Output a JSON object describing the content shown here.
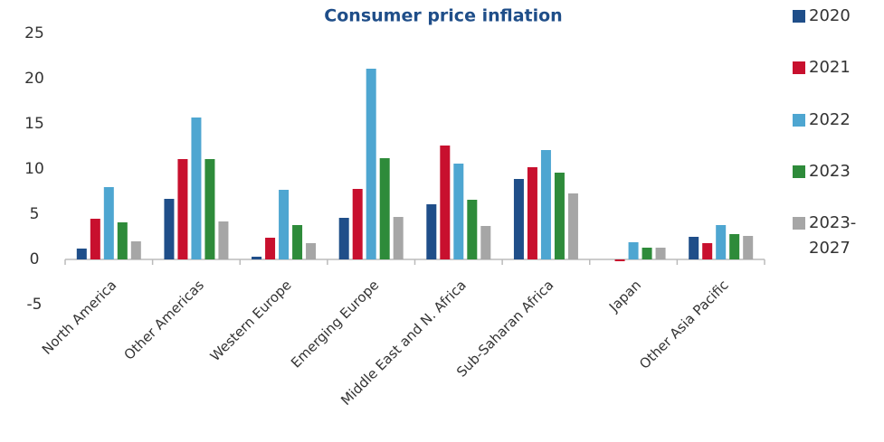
{
  "chart_data": {
    "type": "bar",
    "title": "Consumer price inflation",
    "categories": [
      "North America",
      "Other Americas",
      "Western Europe",
      "Emerging Europe",
      "Middle East and N. Africa",
      "Sub-Saharan Africa",
      "Japan",
      "Other Asia Pacific"
    ],
    "series": [
      {
        "name": "2020",
        "color": "#1f4e89",
        "values": [
          1.2,
          6.7,
          0.3,
          4.6,
          6.1,
          8.9,
          0,
          2.5
        ]
      },
      {
        "name": "2021",
        "color": "#c8102e",
        "values": [
          4.5,
          11.1,
          2.4,
          7.8,
          12.6,
          10.2,
          -0.2,
          1.8
        ]
      },
      {
        "name": "2022",
        "color": "#4ea6d1",
        "values": [
          8,
          15.7,
          7.7,
          21.1,
          10.6,
          12.1,
          1.9,
          3.8
        ]
      },
      {
        "name": "2023",
        "color": "#2e8b3a",
        "values": [
          4.1,
          11.1,
          3.8,
          11.2,
          6.6,
          9.6,
          1.3,
          2.8
        ]
      },
      {
        "name": "2023-2027",
        "color": "#a6a6a6",
        "values": [
          2.0,
          4.2,
          1.8,
          4.7,
          3.7,
          7.3,
          1.3,
          2.6
        ]
      }
    ],
    "ylim": [
      -5,
      25
    ],
    "yticks": [
      -5,
      0,
      5,
      10,
      15,
      20,
      25
    ],
    "grid": false,
    "legend": "right"
  }
}
